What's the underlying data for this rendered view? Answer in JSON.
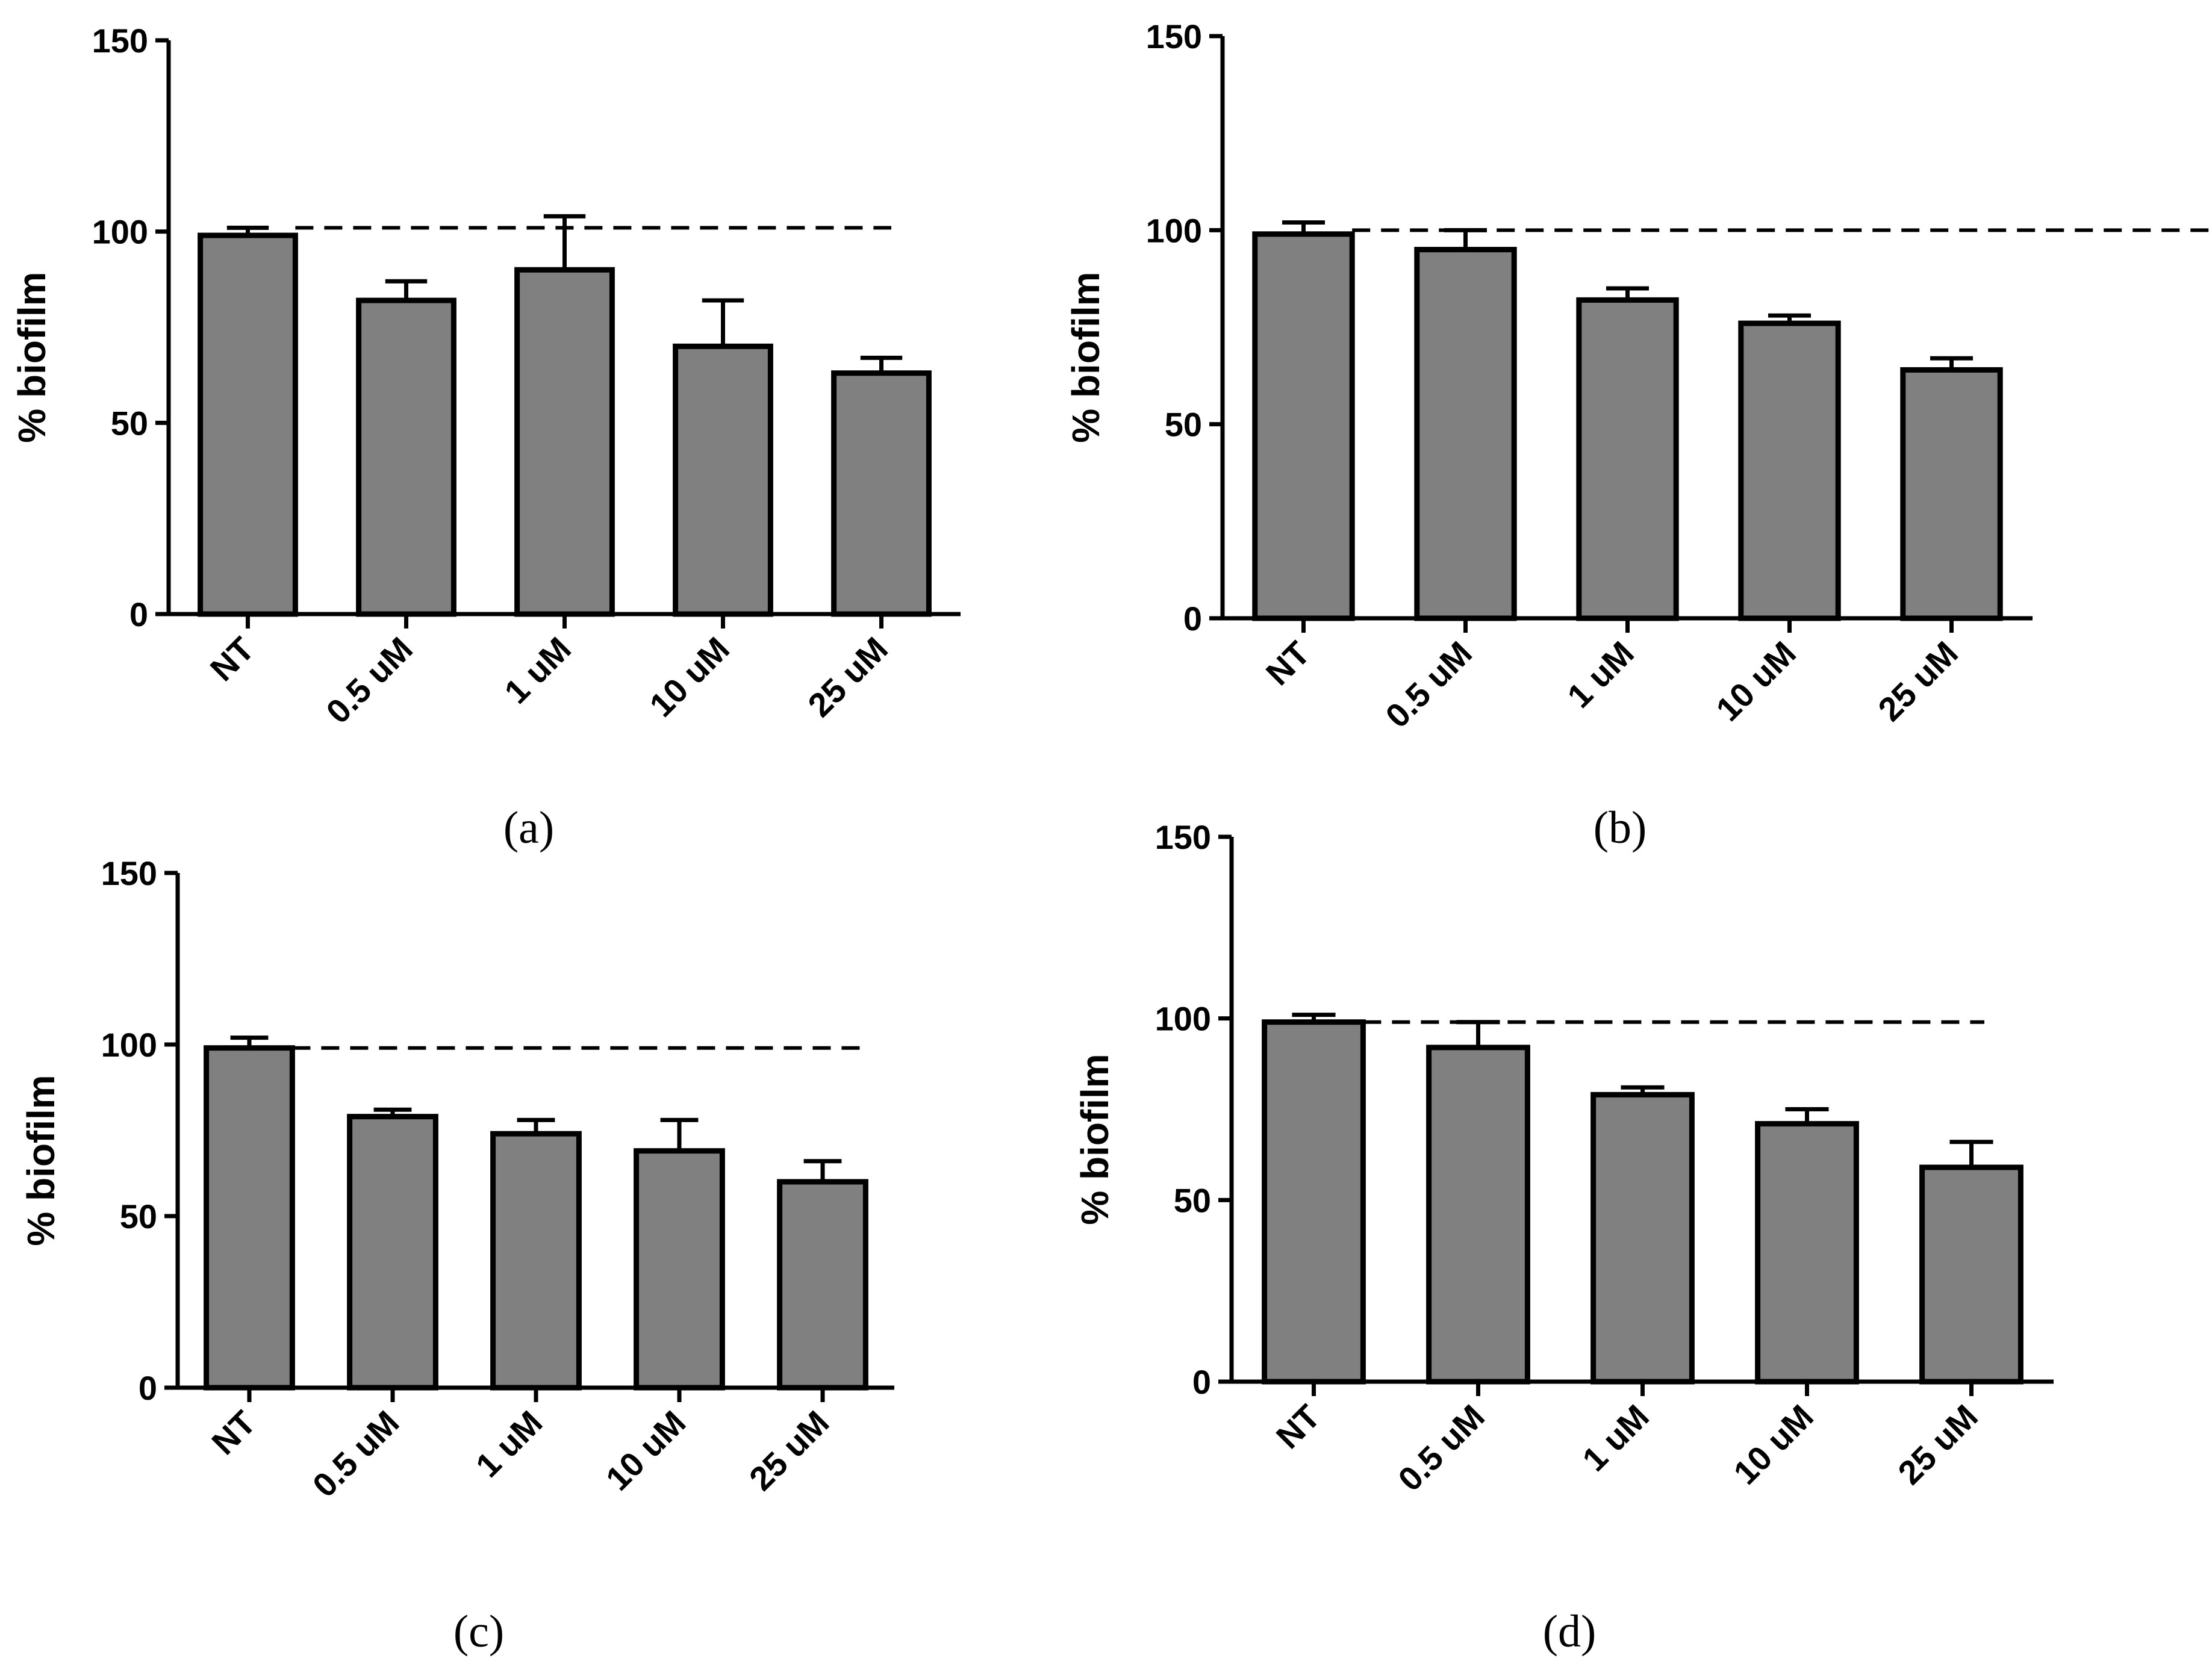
{
  "chart_data": [
    {
      "type": "bar",
      "panel_label": "(a)",
      "ylabel": "% biofilm",
      "xlabel": "",
      "ylim": [
        0,
        150
      ],
      "yticks": [
        "0",
        "50",
        "100",
        "150"
      ],
      "categories": [
        "NT",
        "0.5 uM",
        "1 uM",
        "10 uM",
        "25 uM"
      ],
      "values": [
        99,
        82,
        90,
        70,
        63
      ],
      "errors": [
        2,
        5,
        14,
        12,
        4
      ],
      "reference_line": 101,
      "bar_color": "#808080"
    },
    {
      "type": "bar",
      "panel_label": "(b)",
      "ylabel": "% biofilm",
      "xlabel": "",
      "ylim": [
        0,
        150
      ],
      "yticks": [
        "0",
        "50",
        "100",
        "150"
      ],
      "categories": [
        "NT",
        "0.5 uM",
        "1 uM",
        "10 uM",
        "25 uM"
      ],
      "values": [
        99,
        95,
        82,
        76,
        64
      ],
      "errors": [
        3,
        5,
        3,
        2,
        3
      ],
      "reference_line": 100,
      "bar_color": "#808080"
    },
    {
      "type": "bar",
      "panel_label": "(c)",
      "ylabel": "% biofilm",
      "xlabel": "",
      "ylim": [
        0,
        150
      ],
      "yticks": [
        "0",
        "50",
        "100",
        "150"
      ],
      "categories": [
        "NT",
        "0.5 uM",
        "1 uM",
        "10 uM",
        "25 uM"
      ],
      "values": [
        99,
        79,
        74,
        69,
        60
      ],
      "errors": [
        3,
        2,
        4,
        9,
        6
      ],
      "reference_line": 99,
      "bar_color": "#808080"
    },
    {
      "type": "bar",
      "panel_label": "(d)",
      "ylabel": "% biofilm",
      "xlabel": "",
      "ylim": [
        0,
        150
      ],
      "yticks": [
        "0",
        "50",
        "100",
        "150"
      ],
      "categories": [
        "NT",
        "0.5 uM",
        "1 uM",
        "10 uM",
        "25 uM"
      ],
      "values": [
        99,
        92,
        79,
        71,
        59
      ],
      "errors": [
        2,
        7,
        2,
        4,
        7
      ],
      "reference_line": 99,
      "bar_color": "#808080"
    }
  ]
}
